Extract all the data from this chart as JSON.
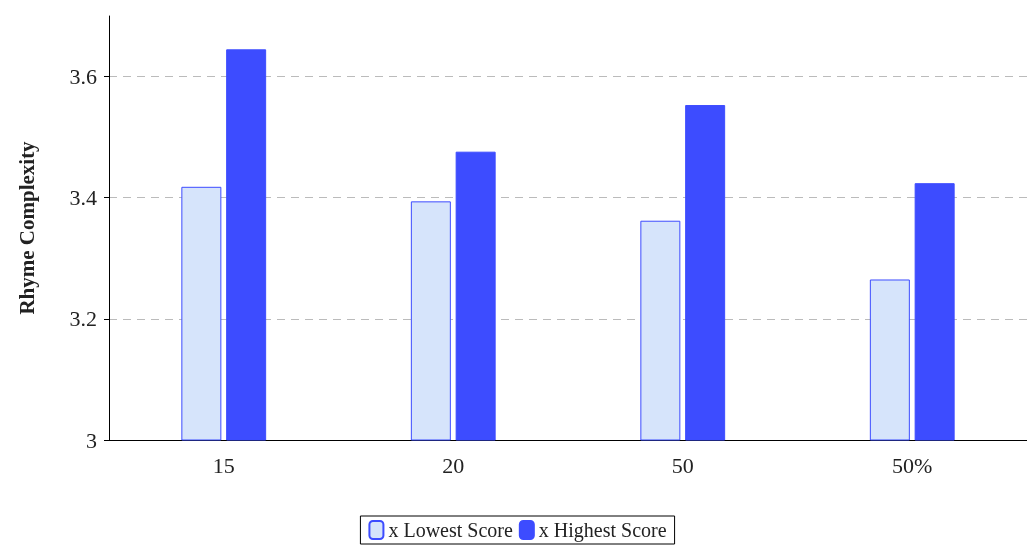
{
  "chart_data": {
    "type": "bar",
    "ylabel": "Rhyme Complexity",
    "categories": [
      "15",
      "20",
      "50",
      "50%"
    ],
    "series": [
      {
        "name": "x Lowest Score",
        "color": "#d6e4fb",
        "values": [
          3.418,
          3.394,
          3.362,
          3.265
        ]
      },
      {
        "name": "x Highest Score",
        "color": "#3d4cff",
        "values": [
          3.645,
          3.476,
          3.553,
          3.424
        ]
      }
    ],
    "ylim": [
      3,
      3.7
    ],
    "yticks": [
      3,
      3.2,
      3.4,
      3.6
    ],
    "grid": "y",
    "legend": "bottom"
  }
}
